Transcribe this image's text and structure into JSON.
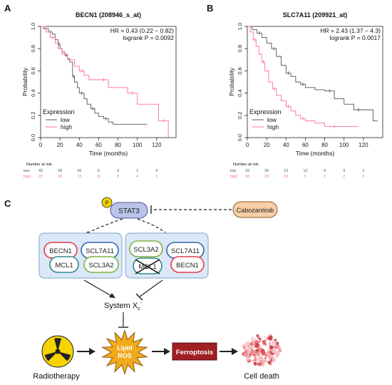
{
  "panels": {
    "a": "A",
    "b": "B",
    "c": "C"
  },
  "chart_data": [
    {
      "type": "line",
      "title": "BECN1 (208946_s_at)",
      "xlabel": "Time (months)",
      "ylabel": "Probability",
      "xlim": [
        0,
        140
      ],
      "ylim": [
        0,
        1
      ],
      "xticks": [
        "0",
        "20",
        "40",
        "60",
        "80",
        "100",
        "120"
      ],
      "yticks": [
        "0.0",
        "0.2",
        "0.4",
        "0.6",
        "0.8",
        "1.0"
      ],
      "hr_text": "HR = 0.43 (0.22 − 0.82)",
      "p_text": "logrank P = 0.0092",
      "legend_title": "Expression",
      "legend_position": "bottom-left",
      "series": [
        {
          "name": "low",
          "color": "#555555",
          "x": [
            0,
            3,
            8,
            12,
            15,
            18,
            20,
            22,
            25,
            28,
            30,
            33,
            35,
            38,
            40,
            45,
            48,
            52,
            56,
            60,
            65,
            70,
            75,
            110
          ],
          "y": [
            1.0,
            0.98,
            0.95,
            0.93,
            0.88,
            0.84,
            0.8,
            0.77,
            0.74,
            0.71,
            0.68,
            0.55,
            0.5,
            0.45,
            0.4,
            0.35,
            0.3,
            0.26,
            0.22,
            0.19,
            0.17,
            0.14,
            0.12,
            0.12
          ]
        },
        {
          "name": "high",
          "color": "#ff6f8a",
          "x": [
            0,
            5,
            10,
            15,
            18,
            22,
            28,
            35,
            40,
            45,
            50,
            60,
            70,
            80,
            90,
            100,
            110,
            122,
            132
          ],
          "y": [
            1.0,
            0.95,
            0.9,
            0.85,
            0.8,
            0.75,
            0.7,
            0.64,
            0.6,
            0.56,
            0.52,
            0.52,
            0.45,
            0.45,
            0.4,
            0.3,
            0.3,
            0.15,
            0.0
          ]
        }
      ],
      "risk_table": {
        "title": "Number at risk",
        "rows": [
          {
            "label": "low",
            "values": [
              "43",
              "28",
              "20",
              "6",
              "3",
              "1",
              "0"
            ]
          },
          {
            "label": "high",
            "values": [
              "22",
              "18",
              "13",
              "11",
              "8",
              "4",
              "1"
            ]
          }
        ]
      }
    },
    {
      "type": "line",
      "title": "SLC7A11 (209921_at)",
      "xlabel": "Time (months)",
      "ylabel": "Probability",
      "xlim": [
        0,
        140
      ],
      "ylim": [
        0,
        1
      ],
      "xticks": [
        "0",
        "20",
        "40",
        "60",
        "80",
        "100",
        "120"
      ],
      "yticks": [
        "0.0",
        "0.2",
        "0.4",
        "0.6",
        "0.8",
        "1.0"
      ],
      "hr_text": "HR = 2.43 (1.37 − 4.3)",
      "p_text": "logrank P = 0.0017",
      "legend_title": "Expression",
      "legend_position": "bottom-left",
      "series": [
        {
          "name": "low",
          "color": "#555555",
          "x": [
            0,
            5,
            10,
            15,
            20,
            25,
            30,
            35,
            40,
            45,
            50,
            55,
            60,
            70,
            80,
            90,
            100,
            110,
            120,
            130,
            135
          ],
          "y": [
            1.0,
            0.97,
            0.94,
            0.9,
            0.85,
            0.8,
            0.73,
            0.65,
            0.58,
            0.55,
            0.5,
            0.48,
            0.45,
            0.43,
            0.42,
            0.35,
            0.3,
            0.25,
            0.25,
            0.15,
            0.15
          ]
        },
        {
          "name": "high",
          "color": "#ff6f8a",
          "x": [
            0,
            3,
            6,
            9,
            12,
            15,
            18,
            22,
            26,
            30,
            35,
            40,
            45,
            50,
            55,
            60,
            70,
            80,
            100,
            115
          ],
          "y": [
            1.0,
            0.95,
            0.88,
            0.82,
            0.75,
            0.68,
            0.6,
            0.5,
            0.44,
            0.38,
            0.33,
            0.28,
            0.24,
            0.2,
            0.17,
            0.15,
            0.13,
            0.1,
            0.1,
            0.1
          ]
        }
      ],
      "risk_table": {
        "title": "Number at risk",
        "rows": [
          {
            "label": "low",
            "values": [
              "33",
              "26",
              "23",
              "12",
              "9",
              "3",
              "1"
            ]
          },
          {
            "label": "high",
            "values": [
              "32",
              "20",
              "10",
              "5",
              "2",
              "2",
              "0"
            ]
          }
        ]
      }
    }
  ],
  "diagram": {
    "stat3_label": "STAT3",
    "phospho_label": "P",
    "inhibitor_label": "Cabozantinib",
    "box1": [
      "BECN1",
      "SCL7A11",
      "MCL1",
      "SCL3A2"
    ],
    "box2": [
      "SCL3A2",
      "SCL7A11",
      "MCL1",
      "BECN1"
    ],
    "system_label": "System X",
    "system_sub": "c",
    "system_sup": "-",
    "radiotherapy_label": "Radiotherapy",
    "lipid_ros_line1": "Lipid",
    "lipid_ros_line2": "ROS",
    "ferroptosis_label": "Ferroptosis",
    "cell_death_label": "Cell death",
    "colors": {
      "stat3": "#b9c3e8",
      "phospho": "#f6d400",
      "cabo": "#f8cfa6",
      "box": "#dbe8f7",
      "ferroptosis": "#9e1f24",
      "ros": "#f2a91c",
      "red_pill": "#e63946",
      "blue_pill": "#2f67b1",
      "green_pill": "#7cb342"
    }
  }
}
